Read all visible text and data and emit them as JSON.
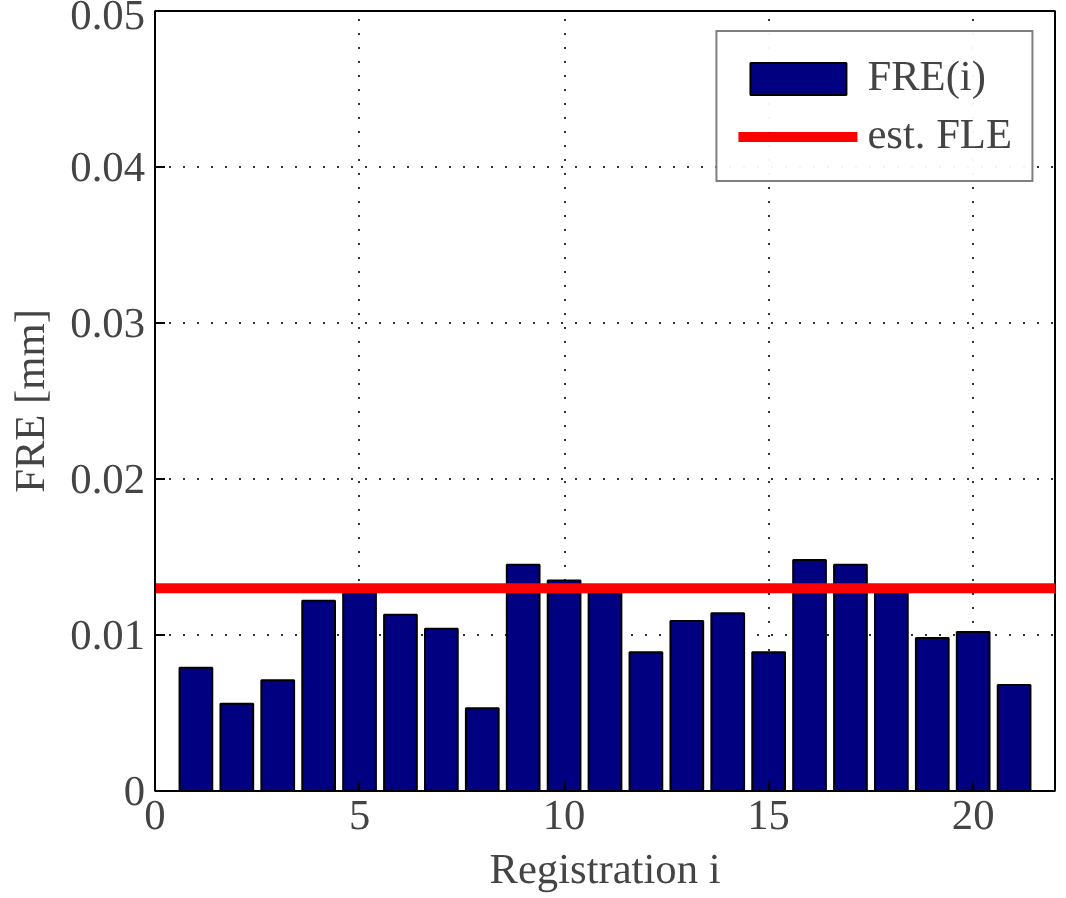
{
  "chart_data": {
    "type": "bar",
    "xlabel": "Registration i",
    "ylabel": "FRE [mm]",
    "x": [
      1,
      2,
      3,
      4,
      5,
      6,
      7,
      8,
      9,
      10,
      11,
      12,
      13,
      14,
      15,
      16,
      17,
      18,
      19,
      20,
      21
    ],
    "series": [
      {
        "name": "FRE(i)",
        "color": "#000080",
        "values": [
          0.0079,
          0.0056,
          0.0071,
          0.0122,
          0.0127,
          0.0113,
          0.0104,
          0.0053,
          0.0145,
          0.0135,
          0.0127,
          0.0089,
          0.0109,
          0.0114,
          0.0089,
          0.0148,
          0.0145,
          0.0127,
          0.0098,
          0.0102,
          0.0068
        ]
      }
    ],
    "ref_lines": [
      {
        "axis": "y",
        "value": 0.013,
        "label": "est. FLE",
        "color": "#ff0000"
      }
    ],
    "xlim": [
      0,
      22
    ],
    "xticks": [
      0,
      5,
      10,
      15,
      20
    ],
    "ylim": [
      0,
      0.05
    ],
    "yticks": [
      0,
      0.01,
      0.02,
      0.03,
      0.04,
      0.05
    ],
    "grid": true,
    "legend": "top right"
  }
}
